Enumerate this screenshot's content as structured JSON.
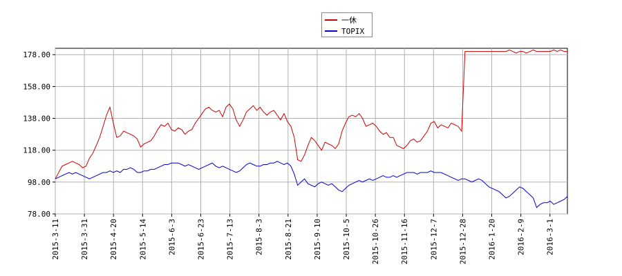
{
  "chart_data": {
    "type": "line",
    "title": "",
    "xlabel": "",
    "ylabel": "",
    "ylim": [
      78,
      182
    ],
    "yticks": [
      "178.00",
      "158.00",
      "138.00",
      "118.00",
      "98.00",
      "78.00"
    ],
    "ytick_values": [
      178,
      158,
      138,
      118,
      98,
      78
    ],
    "x_ticks": [
      "2015-3-11",
      "2015-3-31",
      "2015-4-20",
      "2015-5-14",
      "2015-6-3",
      "2015-6-23",
      "2015-7-13",
      "2015-8-3",
      "2015-8-21",
      "2015-9-10",
      "2015-10-5",
      "2015-10-26",
      "2015-11-16",
      "2015-12-7",
      "2015-12-28",
      "2016-1-20",
      "2016-2-9",
      "2016-3-1"
    ],
    "grid": true,
    "legend_position": "top-center",
    "series": [
      {
        "name": "一休",
        "color": "#cc0000",
        "points": [
          [
            0,
            100
          ],
          [
            1,
            104
          ],
          [
            2,
            108
          ],
          [
            3,
            109
          ],
          [
            4,
            110
          ],
          [
            5,
            111
          ],
          [
            6,
            110
          ],
          [
            7,
            109
          ],
          [
            8,
            107
          ],
          [
            9,
            108
          ],
          [
            10,
            113
          ],
          [
            11,
            116
          ],
          [
            12,
            121
          ],
          [
            13,
            126
          ],
          [
            14,
            133
          ],
          [
            15,
            140
          ],
          [
            16,
            145
          ],
          [
            17,
            135
          ],
          [
            18,
            126
          ],
          [
            19,
            127
          ],
          [
            20,
            130
          ],
          [
            21,
            129
          ],
          [
            22,
            128
          ],
          [
            23,
            127
          ],
          [
            24,
            125
          ],
          [
            25,
            120
          ],
          [
            26,
            122
          ],
          [
            27,
            123
          ],
          [
            28,
            124
          ],
          [
            29,
            127
          ],
          [
            30,
            131
          ],
          [
            31,
            134
          ],
          [
            32,
            133
          ],
          [
            33,
            135
          ],
          [
            34,
            131
          ],
          [
            35,
            130
          ],
          [
            36,
            132
          ],
          [
            37,
            131
          ],
          [
            38,
            128
          ],
          [
            39,
            130
          ],
          [
            40,
            131
          ],
          [
            41,
            135
          ],
          [
            42,
            138
          ],
          [
            43,
            141
          ],
          [
            44,
            144
          ],
          [
            45,
            145
          ],
          [
            46,
            143
          ],
          [
            47,
            142
          ],
          [
            48,
            143
          ],
          [
            49,
            139
          ],
          [
            50,
            145
          ],
          [
            51,
            147
          ],
          [
            52,
            144
          ],
          [
            53,
            137
          ],
          [
            54,
            133
          ],
          [
            55,
            137
          ],
          [
            56,
            142
          ],
          [
            57,
            144
          ],
          [
            58,
            146
          ],
          [
            59,
            143
          ],
          [
            60,
            145
          ],
          [
            61,
            142
          ],
          [
            62,
            140
          ],
          [
            63,
            142
          ],
          [
            64,
            143
          ],
          [
            65,
            140
          ],
          [
            66,
            137
          ],
          [
            67,
            141
          ],
          [
            68,
            136
          ],
          [
            69,
            133
          ],
          [
            70,
            126
          ],
          [
            71,
            112
          ],
          [
            72,
            111
          ],
          [
            73,
            115
          ],
          [
            74,
            121
          ],
          [
            75,
            126
          ],
          [
            76,
            124
          ],
          [
            77,
            121
          ],
          [
            78,
            118
          ],
          [
            79,
            123
          ],
          [
            80,
            122
          ],
          [
            81,
            121
          ],
          [
            82,
            119
          ],
          [
            83,
            122
          ],
          [
            84,
            130
          ],
          [
            85,
            135
          ],
          [
            86,
            139
          ],
          [
            87,
            140
          ],
          [
            88,
            139
          ],
          [
            89,
            141
          ],
          [
            90,
            138
          ],
          [
            91,
            133
          ],
          [
            92,
            134
          ],
          [
            93,
            135
          ],
          [
            94,
            133
          ],
          [
            95,
            130
          ],
          [
            96,
            128
          ],
          [
            97,
            129
          ],
          [
            98,
            126
          ],
          [
            99,
            126
          ],
          [
            100,
            121
          ],
          [
            101,
            120
          ],
          [
            102,
            119
          ],
          [
            103,
            121
          ],
          [
            104,
            124
          ],
          [
            105,
            125
          ],
          [
            106,
            123
          ],
          [
            107,
            124
          ],
          [
            108,
            127
          ],
          [
            109,
            130
          ],
          [
            110,
            135
          ],
          [
            111,
            136
          ],
          [
            112,
            132
          ],
          [
            113,
            134
          ],
          [
            114,
            133
          ],
          [
            115,
            132
          ],
          [
            116,
            135
          ],
          [
            117,
            134
          ],
          [
            118,
            133
          ],
          [
            119,
            130
          ],
          [
            120,
            180
          ],
          [
            121,
            180
          ],
          [
            122,
            180
          ],
          [
            123,
            180
          ],
          [
            124,
            180
          ],
          [
            125,
            180
          ],
          [
            126,
            180
          ],
          [
            127,
            180
          ],
          [
            128,
            180
          ],
          [
            129,
            180
          ],
          [
            130,
            180
          ],
          [
            131,
            180
          ],
          [
            132,
            180
          ],
          [
            133,
            181
          ],
          [
            134,
            180
          ],
          [
            135,
            179
          ],
          [
            136,
            180
          ],
          [
            137,
            180
          ],
          [
            138,
            179
          ],
          [
            139,
            180
          ],
          [
            140,
            181
          ],
          [
            141,
            180
          ],
          [
            142,
            180
          ],
          [
            143,
            180
          ],
          [
            144,
            180
          ],
          [
            145,
            180
          ],
          [
            146,
            181
          ],
          [
            147,
            180
          ],
          [
            148,
            181
          ],
          [
            149,
            180
          ],
          [
            150,
            180
          ]
        ]
      },
      {
        "name": "TOPIX",
        "color": "#0000cc",
        "points": [
          [
            0,
            100
          ],
          [
            1,
            101
          ],
          [
            2,
            102
          ],
          [
            3,
            103
          ],
          [
            4,
            104
          ],
          [
            5,
            103
          ],
          [
            6,
            104
          ],
          [
            7,
            103
          ],
          [
            8,
            102
          ],
          [
            9,
            101
          ],
          [
            10,
            100
          ],
          [
            11,
            101
          ],
          [
            12,
            102
          ],
          [
            13,
            103
          ],
          [
            14,
            104
          ],
          [
            15,
            104
          ],
          [
            16,
            105
          ],
          [
            17,
            104
          ],
          [
            18,
            105
          ],
          [
            19,
            104
          ],
          [
            20,
            106
          ],
          [
            21,
            106
          ],
          [
            22,
            107
          ],
          [
            23,
            106
          ],
          [
            24,
            104
          ],
          [
            25,
            104
          ],
          [
            26,
            105
          ],
          [
            27,
            105
          ],
          [
            28,
            106
          ],
          [
            29,
            106
          ],
          [
            30,
            107
          ],
          [
            31,
            108
          ],
          [
            32,
            109
          ],
          [
            33,
            109
          ],
          [
            34,
            110
          ],
          [
            35,
            110
          ],
          [
            36,
            110
          ],
          [
            37,
            109
          ],
          [
            38,
            108
          ],
          [
            39,
            109
          ],
          [
            40,
            108
          ],
          [
            41,
            107
          ],
          [
            42,
            106
          ],
          [
            43,
            107
          ],
          [
            44,
            108
          ],
          [
            45,
            109
          ],
          [
            46,
            110
          ],
          [
            47,
            108
          ],
          [
            48,
            107
          ],
          [
            49,
            108
          ],
          [
            50,
            107
          ],
          [
            51,
            106
          ],
          [
            52,
            105
          ],
          [
            53,
            104
          ],
          [
            54,
            105
          ],
          [
            55,
            107
          ],
          [
            56,
            109
          ],
          [
            57,
            110
          ],
          [
            58,
            109
          ],
          [
            59,
            108
          ],
          [
            60,
            108
          ],
          [
            61,
            109
          ],
          [
            62,
            109
          ],
          [
            63,
            110
          ],
          [
            64,
            110
          ],
          [
            65,
            111
          ],
          [
            66,
            110
          ],
          [
            67,
            109
          ],
          [
            68,
            110
          ],
          [
            69,
            108
          ],
          [
            70,
            103
          ],
          [
            71,
            96
          ],
          [
            72,
            98
          ],
          [
            73,
            100
          ],
          [
            74,
            97
          ],
          [
            75,
            96
          ],
          [
            76,
            95
          ],
          [
            77,
            97
          ],
          [
            78,
            98
          ],
          [
            79,
            97
          ],
          [
            80,
            96
          ],
          [
            81,
            97
          ],
          [
            82,
            95
          ],
          [
            83,
            93
          ],
          [
            84,
            92
          ],
          [
            85,
            94
          ],
          [
            86,
            96
          ],
          [
            87,
            97
          ],
          [
            88,
            98
          ],
          [
            89,
            99
          ],
          [
            90,
            98
          ],
          [
            91,
            99
          ],
          [
            92,
            100
          ],
          [
            93,
            99
          ],
          [
            94,
            100
          ],
          [
            95,
            101
          ],
          [
            96,
            102
          ],
          [
            97,
            101
          ],
          [
            98,
            101
          ],
          [
            99,
            102
          ],
          [
            100,
            101
          ],
          [
            101,
            102
          ],
          [
            102,
            103
          ],
          [
            103,
            104
          ],
          [
            104,
            104
          ],
          [
            105,
            104
          ],
          [
            106,
            103
          ],
          [
            107,
            104
          ],
          [
            108,
            104
          ],
          [
            109,
            104
          ],
          [
            110,
            105
          ],
          [
            111,
            104
          ],
          [
            112,
            104
          ],
          [
            113,
            104
          ],
          [
            114,
            103
          ],
          [
            115,
            102
          ],
          [
            116,
            101
          ],
          [
            117,
            100
          ],
          [
            118,
            99
          ],
          [
            119,
            100
          ],
          [
            120,
            100
          ],
          [
            121,
            99
          ],
          [
            122,
            98
          ],
          [
            123,
            99
          ],
          [
            124,
            100
          ],
          [
            125,
            99
          ],
          [
            126,
            97
          ],
          [
            127,
            95
          ],
          [
            128,
            94
          ],
          [
            129,
            93
          ],
          [
            130,
            92
          ],
          [
            131,
            90
          ],
          [
            132,
            88
          ],
          [
            133,
            89
          ],
          [
            134,
            91
          ],
          [
            135,
            93
          ],
          [
            136,
            95
          ],
          [
            137,
            94
          ],
          [
            138,
            92
          ],
          [
            139,
            90
          ],
          [
            140,
            88
          ],
          [
            141,
            82
          ],
          [
            142,
            84
          ],
          [
            143,
            85
          ],
          [
            144,
            85
          ],
          [
            145,
            86
          ],
          [
            146,
            84
          ],
          [
            147,
            85
          ],
          [
            148,
            86
          ],
          [
            149,
            87
          ],
          [
            150,
            89
          ]
        ]
      }
    ]
  }
}
